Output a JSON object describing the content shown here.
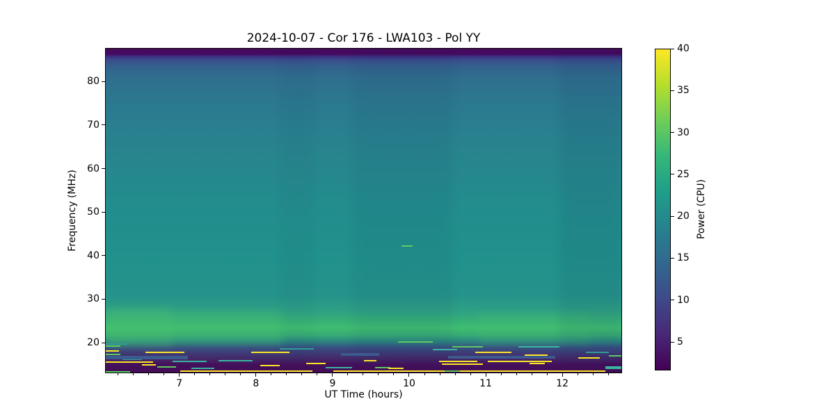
{
  "chart_data": {
    "type": "heatmap",
    "title": "2024-10-07 - Cor 176 - LWA103 - Pol YY",
    "xlabel": "UT Time (hours)",
    "ylabel": "Frequency (MHz)",
    "x_range": [
      6.03,
      12.78
    ],
    "y_range": [
      13.0,
      87.7
    ],
    "x_ticks": [
      7,
      8,
      9,
      10,
      11,
      12
    ],
    "x_minor_tick_step": 0.2,
    "y_ticks": [
      20,
      30,
      40,
      50,
      60,
      70,
      80
    ],
    "grid": false,
    "colormap": "viridis",
    "colorbar": {
      "label": "Power (CPU)",
      "range": [
        1.6,
        40
      ],
      "ticks": [
        5,
        10,
        15,
        20,
        25,
        30,
        35,
        40
      ],
      "position": "right",
      "gradient_stops": [
        "#440154",
        "#482878",
        "#3e4a89",
        "#31688e",
        "#26828e",
        "#1f9e89",
        "#35b779",
        "#6ece58",
        "#b5de2b",
        "#fde725"
      ]
    },
    "power_profile_by_frequency": [
      {
        "f_mhz": 87.5,
        "power_cpu": 2
      },
      {
        "f_mhz": 84.0,
        "power_cpu": 9
      },
      {
        "f_mhz": 80.0,
        "power_cpu": 14
      },
      {
        "f_mhz": 70.0,
        "power_cpu": 16
      },
      {
        "f_mhz": 60.0,
        "power_cpu": 17
      },
      {
        "f_mhz": 50.0,
        "power_cpu": 18
      },
      {
        "f_mhz": 40.0,
        "power_cpu": 17
      },
      {
        "f_mhz": 35.0,
        "power_cpu": 16
      },
      {
        "f_mhz": 30.0,
        "power_cpu": 18
      },
      {
        "f_mhz": 27.0,
        "power_cpu": 22
      },
      {
        "f_mhz": 23.0,
        "power_cpu": 27
      },
      {
        "f_mhz": 20.0,
        "power_cpu": 22
      },
      {
        "f_mhz": 18.5,
        "power_cpu": 12
      },
      {
        "f_mhz": 17.0,
        "power_cpu": 7
      },
      {
        "f_mhz": 15.0,
        "power_cpu": 4
      },
      {
        "f_mhz": 13.0,
        "power_cpu": 3
      }
    ],
    "background_profile": [
      {
        "pct": 0.0,
        "color": "#450a5c"
      },
      {
        "pct": 1.6,
        "color": "#45095d"
      },
      {
        "pct": 2.5,
        "color": "#3d3185"
      },
      {
        "pct": 3.6,
        "color": "#3a4e8a"
      },
      {
        "pct": 5.5,
        "color": "#33608d"
      },
      {
        "pct": 9.0,
        "color": "#2f6e8e"
      },
      {
        "pct": 17.0,
        "color": "#2b798e"
      },
      {
        "pct": 30.0,
        "color": "#28838e"
      },
      {
        "pct": 47.0,
        "color": "#238c8d"
      },
      {
        "pct": 64.0,
        "color": "#21918c"
      },
      {
        "pct": 76.0,
        "color": "#25938a"
      },
      {
        "pct": 80.5,
        "color": "#2d9e85"
      },
      {
        "pct": 84.0,
        "color": "#37b077"
      },
      {
        "pct": 86.3,
        "color": "#3fbd71"
      },
      {
        "pct": 88.5,
        "color": "#37aa74"
      },
      {
        "pct": 90.3,
        "color": "#2b8780"
      },
      {
        "pct": 92.3,
        "color": "#374f80"
      },
      {
        "pct": 94.0,
        "color": "#3e3a76"
      },
      {
        "pct": 95.7,
        "color": "#432968"
      },
      {
        "pct": 97.5,
        "color": "#45105c"
      },
      {
        "pct": 100.0,
        "color": "#430c55"
      }
    ],
    "band_highlights": [
      {
        "t": [
          6.03,
          8.35
        ],
        "f": [
          19.5,
          27.5
        ],
        "color": "#49c16f",
        "opacity": 0.25
      },
      {
        "t": [
          6.03,
          6.9
        ],
        "f": [
          19.0,
          28.5
        ],
        "color": "#52c96d",
        "opacity": 0.2
      },
      {
        "t": [
          10.9,
          12.35
        ],
        "f": [
          19.5,
          27.0
        ],
        "color": "#49c16f",
        "opacity": 0.18
      }
    ],
    "time_shading": [
      {
        "t": [
          9.25,
          10.55
        ],
        "color": "#0a1e50",
        "opacity": 0.05
      },
      {
        "t": [
          11.95,
          12.78
        ],
        "color": "#0a1e50",
        "opacity": 0.07
      },
      {
        "t": [
          8.3,
          8.75
        ],
        "color": "#0a1e50",
        "opacity": 0.03
      }
    ],
    "rfi_streaks": [
      {
        "t": [
          6.03,
          6.22
        ],
        "f": 19.4,
        "color": "#5ec962",
        "h": 2
      },
      {
        "t": [
          6.03,
          6.3
        ],
        "f": 19.9,
        "color": "#2f9d94",
        "h": 2
      },
      {
        "t": [
          6.03,
          6.2
        ],
        "f": 18.2,
        "color": "#fde725",
        "h": 2
      },
      {
        "t": [
          6.03,
          6.22
        ],
        "f": 17.4,
        "color": "#5ec962",
        "h": 2
      },
      {
        "t": [
          6.25,
          6.5
        ],
        "f": 16.4,
        "color": "#2f9d94",
        "h": 2
      },
      {
        "t": [
          6.03,
          6.65
        ],
        "f": 15.7,
        "color": "#fde725",
        "h": 2
      },
      {
        "t": [
          6.5,
          6.68
        ],
        "f": 15.1,
        "color": "#fde725",
        "h": 2
      },
      {
        "t": [
          6.03,
          6.35
        ],
        "f": 13.5,
        "color": "#5ec962",
        "h": 2
      },
      {
        "t": [
          6.03,
          7.1
        ],
        "f": 16.7,
        "color": "#3d5a8f",
        "h": 5
      },
      {
        "t": [
          6.55,
          7.06
        ],
        "f": 17.9,
        "color": "#fde725",
        "h": 2
      },
      {
        "t": [
          6.7,
          6.95
        ],
        "f": 14.6,
        "color": "#5ec962",
        "h": 2
      },
      {
        "t": [
          6.9,
          7.35
        ],
        "f": 15.9,
        "color": "#3bb6a0",
        "h": 2
      },
      {
        "t": [
          7.15,
          7.45
        ],
        "f": 14.3,
        "color": "#3bb6a0",
        "h": 2
      },
      {
        "t": [
          7.5,
          7.95
        ],
        "f": 16.0,
        "color": "#3bb6a0",
        "h": 2
      },
      {
        "t": [
          7.93,
          8.43
        ],
        "f": 17.9,
        "color": "#fde725",
        "h": 2
      },
      {
        "t": [
          7.0,
          8.73
        ],
        "f": 13.7,
        "color": "#fde725",
        "h": 2
      },
      {
        "t": [
          8.05,
          8.3
        ],
        "f": 14.9,
        "color": "#fde725",
        "h": 2
      },
      {
        "t": [
          8.3,
          8.75
        ],
        "f": 18.8,
        "color": "#2f9d94",
        "h": 2
      },
      {
        "t": [
          8.65,
          8.9
        ],
        "f": 15.4,
        "color": "#fde725",
        "h": 2
      },
      {
        "t": [
          8.9,
          9.25
        ],
        "f": 14.4,
        "color": "#3bb6a0",
        "h": 2
      },
      {
        "t": [
          9.0,
          10.45
        ],
        "f": 13.6,
        "color": "#fde725",
        "h": 2
      },
      {
        "t": [
          9.1,
          9.6
        ],
        "f": 17.5,
        "color": "#3d5a8f",
        "h": 4
      },
      {
        "t": [
          9.4,
          9.56
        ],
        "f": 16.0,
        "color": "#fde725",
        "h": 2
      },
      {
        "t": [
          9.55,
          9.75
        ],
        "f": 14.5,
        "color": "#5ec962",
        "h": 2
      },
      {
        "t": [
          9.72,
          9.92
        ],
        "f": 14.3,
        "color": "#fde725",
        "h": 2
      },
      {
        "t": [
          9.85,
          10.3
        ],
        "f": 20.3,
        "color": "#5ec962",
        "h": 2
      },
      {
        "t": [
          9.89,
          10.04
        ],
        "f": 42.3,
        "color": "#5ec962",
        "h": 2
      },
      {
        "t": [
          10.3,
          10.62
        ],
        "f": 18.6,
        "color": "#3bb6a0",
        "h": 2
      },
      {
        "t": [
          10.38,
          10.88
        ],
        "f": 15.9,
        "color": "#fde725",
        "h": 2
      },
      {
        "t": [
          10.42,
          10.95
        ],
        "f": 15.3,
        "color": "#fde725",
        "h": 2
      },
      {
        "t": [
          10.45,
          10.65
        ],
        "f": 13.6,
        "color": "#5ec962",
        "h": 2
      },
      {
        "t": [
          10.5,
          11.9
        ],
        "f": 16.9,
        "color": "#3d5a8f",
        "h": 4
      },
      {
        "t": [
          10.55,
          10.95
        ],
        "f": 19.3,
        "color": "#5ec962",
        "h": 2
      },
      {
        "t": [
          10.65,
          12.55
        ],
        "f": 13.6,
        "color": "#fde725",
        "h": 2
      },
      {
        "t": [
          10.85,
          11.33
        ],
        "f": 17.9,
        "color": "#fde725",
        "h": 2
      },
      {
        "t": [
          11.02,
          11.85
        ],
        "f": 15.9,
        "color": "#fde725",
        "h": 2
      },
      {
        "t": [
          11.42,
          11.95
        ],
        "f": 19.2,
        "color": "#3bb6a0",
        "h": 2
      },
      {
        "t": [
          11.5,
          11.8
        ],
        "f": 17.3,
        "color": "#fde725",
        "h": 2
      },
      {
        "t": [
          11.56,
          11.76
        ],
        "f": 15.4,
        "color": "#fde725",
        "h": 2
      },
      {
        "t": [
          12.2,
          12.48
        ],
        "f": 16.7,
        "color": "#fde725",
        "h": 2
      },
      {
        "t": [
          12.3,
          12.6
        ],
        "f": 18.0,
        "color": "#2f9d94",
        "h": 2
      },
      {
        "t": [
          12.55,
          12.78
        ],
        "f": 14.5,
        "color": "#3bb6a0",
        "h": 4
      },
      {
        "t": [
          12.6,
          12.78
        ],
        "f": 17.1,
        "color": "#5ec962",
        "h": 2
      }
    ]
  }
}
